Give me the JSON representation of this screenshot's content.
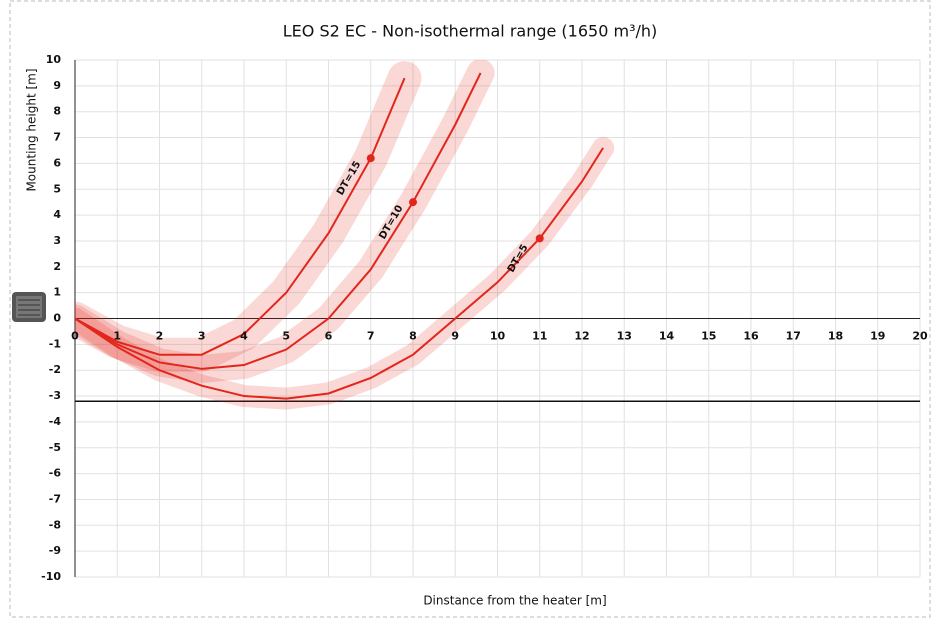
{
  "chart_data": {
    "type": "line",
    "title": "LEO S2 EC - Non-isothermal range (1650 m³/h)",
    "x_label": "Dinstance from the heater [m]",
    "y_label": "Mounting height [m]",
    "xlim": [
      0,
      20
    ],
    "ylim": [
      -10,
      10
    ],
    "xticks": [
      0,
      1,
      2,
      3,
      4,
      5,
      6,
      7,
      8,
      9,
      10,
      11,
      12,
      13,
      14,
      15,
      16,
      17,
      18,
      19,
      20
    ],
    "yticks": [
      -10,
      -9,
      -8,
      -7,
      -6,
      -5,
      -4,
      -3,
      -2,
      -1,
      0,
      1,
      2,
      3,
      4,
      5,
      6,
      7,
      8,
      9,
      10
    ],
    "grid": true,
    "hlines": [
      -3.2
    ],
    "series": [
      {
        "name": "DT=15",
        "color": "#e3261c",
        "x": [
          0,
          1,
          2,
          3,
          4,
          5,
          6,
          7,
          7.8
        ],
        "values": [
          0,
          -0.9,
          -1.4,
          -1.4,
          -0.6,
          1.0,
          3.3,
          6.2,
          9.3
        ],
        "marker": {
          "x": 7,
          "y": 6.2
        }
      },
      {
        "name": "DT=10",
        "color": "#e3261c",
        "x": [
          0,
          1,
          2,
          3,
          4,
          5,
          6,
          7,
          8,
          9,
          9.6
        ],
        "values": [
          0,
          -1.0,
          -1.7,
          -1.95,
          -1.8,
          -1.2,
          0,
          1.9,
          4.5,
          7.5,
          9.5
        ],
        "marker": {
          "x": 8,
          "y": 4.5
        }
      },
      {
        "name": "DT=5",
        "color": "#e3261c",
        "x": [
          0,
          1,
          2,
          3,
          4,
          5,
          6,
          7,
          8,
          9,
          10,
          11,
          12,
          12.5
        ],
        "values": [
          0,
          -1.1,
          -2.0,
          -2.6,
          -3.0,
          -3.1,
          -2.9,
          -2.3,
          -1.4,
          0,
          1.4,
          3.1,
          5.3,
          6.6
        ],
        "marker": {
          "x": 11,
          "y": 3.1
        }
      }
    ]
  }
}
